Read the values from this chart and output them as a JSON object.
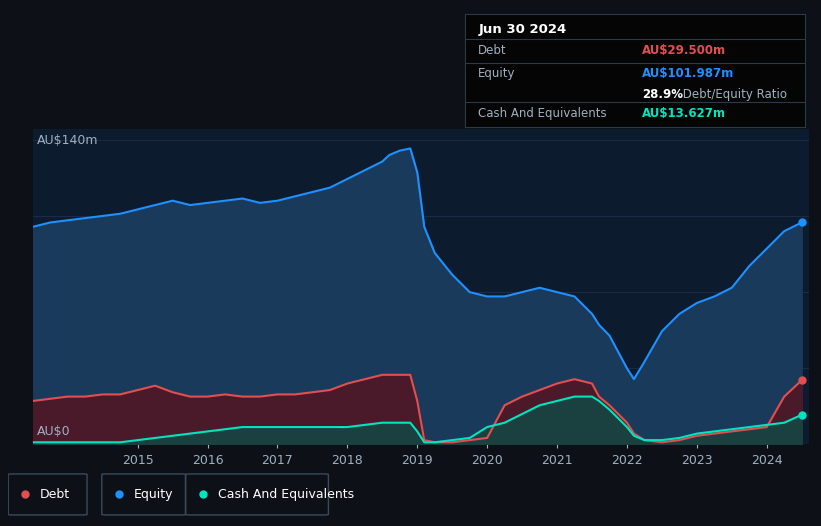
{
  "bg_color": "#0d1117",
  "plot_bg_color": "#0d1b2e",
  "ylabel_top": "AU$140m",
  "ylabel_bottom": "AU$0",
  "equity_color": "#1e90ff",
  "equity_fill": "#1a3a5c",
  "debt_color": "#e05050",
  "debt_fill": "#4a1a2a",
  "cash_color": "#00e5c0",
  "cash_fill": "#1a4040",
  "grid_color": "#1e3050",
  "text_color": "#a0b0c0",
  "info_box": {
    "title": "Jun 30 2024",
    "debt_label": "Debt",
    "debt_value": "AU$29.500m",
    "debt_color": "#e05050",
    "equity_label": "Equity",
    "equity_value": "AU$101.987m",
    "equity_color": "#1e90ff",
    "ratio_text": "28.9%",
    "ratio_label": " Debt/Equity Ratio",
    "cash_label": "Cash And Equivalents",
    "cash_value": "AU$13.627m",
    "cash_color": "#00e5c0"
  },
  "years": [
    2013.5,
    2013.75,
    2014.0,
    2014.25,
    2014.5,
    2014.75,
    2015.0,
    2015.25,
    2015.5,
    2015.75,
    2016.0,
    2016.25,
    2016.5,
    2016.75,
    2017.0,
    2017.25,
    2017.5,
    2017.75,
    2018.0,
    2018.25,
    2018.5,
    2018.6,
    2018.75,
    2018.9,
    2019.0,
    2019.1,
    2019.25,
    2019.5,
    2019.75,
    2020.0,
    2020.25,
    2020.5,
    2020.75,
    2021.0,
    2021.25,
    2021.5,
    2021.6,
    2021.75,
    2022.0,
    2022.1,
    2022.25,
    2022.5,
    2022.75,
    2023.0,
    2023.25,
    2023.5,
    2023.75,
    2024.0,
    2024.25,
    2024.5
  ],
  "equity": [
    100,
    102,
    103,
    104,
    105,
    106,
    108,
    110,
    112,
    110,
    111,
    112,
    113,
    111,
    112,
    114,
    116,
    118,
    122,
    126,
    130,
    133,
    135,
    136,
    125,
    100,
    88,
    78,
    70,
    68,
    68,
    70,
    72,
    70,
    68,
    60,
    55,
    50,
    35,
    30,
    38,
    52,
    60,
    65,
    68,
    72,
    82,
    90,
    98,
    102
  ],
  "debt": [
    20,
    21,
    22,
    22,
    23,
    23,
    25,
    27,
    24,
    22,
    22,
    23,
    22,
    22,
    23,
    23,
    24,
    25,
    28,
    30,
    32,
    32,
    32,
    32,
    20,
    2,
    1,
    1,
    2,
    3,
    18,
    22,
    25,
    28,
    30,
    28,
    22,
    18,
    10,
    5,
    2,
    1,
    2,
    4,
    5,
    6,
    7,
    8,
    22,
    29.5
  ],
  "cash": [
    1,
    1,
    1,
    1,
    1,
    1,
    2,
    3,
    4,
    5,
    6,
    7,
    8,
    8,
    8,
    8,
    8,
    8,
    8,
    9,
    10,
    10,
    10,
    10,
    6,
    1,
    1,
    2,
    3,
    8,
    10,
    14,
    18,
    20,
    22,
    22,
    20,
    16,
    8,
    4,
    2,
    2,
    3,
    5,
    6,
    7,
    8,
    9,
    10,
    13.6
  ],
  "xlim": [
    2013.5,
    2024.6
  ],
  "ylim": [
    0,
    145
  ],
  "xticks": [
    2015,
    2016,
    2017,
    2018,
    2019,
    2020,
    2021,
    2022,
    2023,
    2024
  ],
  "xtick_labels": [
    "2015",
    "2016",
    "2017",
    "2018",
    "2019",
    "2020",
    "2021",
    "2022",
    "2023",
    "2024"
  ],
  "hgrid_y": [
    0,
    35,
    70,
    105,
    140
  ]
}
